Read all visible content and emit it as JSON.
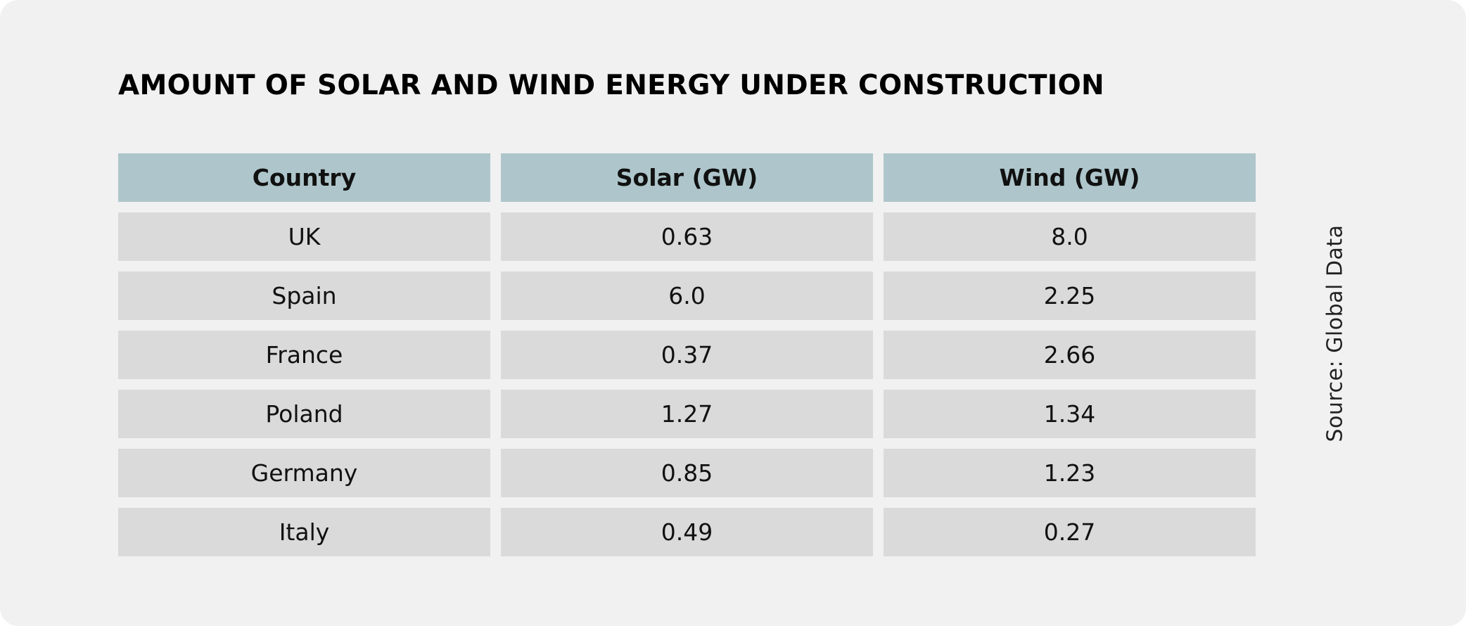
{
  "chart_data": {
    "type": "table",
    "title": "AMOUNT OF SOLAR AND WIND ENERGY UNDER CONSTRUCTION",
    "columns": [
      "Country",
      "Solar (GW)",
      "Wind (GW)"
    ],
    "rows": [
      [
        "UK",
        "0.63",
        "8.0"
      ],
      [
        "Spain",
        "6.0",
        "2.25"
      ],
      [
        "France",
        "0.37",
        "2.66"
      ],
      [
        "Poland",
        "1.27",
        "1.34"
      ],
      [
        "Germany",
        "0.85",
        "1.23"
      ],
      [
        "Italy",
        "0.49",
        "0.27"
      ]
    ],
    "source": "Source: Global Data"
  },
  "colors": {
    "background": "#f1f1f1",
    "header_fill": "#aec6cb",
    "cell_fill": "#dadada"
  }
}
